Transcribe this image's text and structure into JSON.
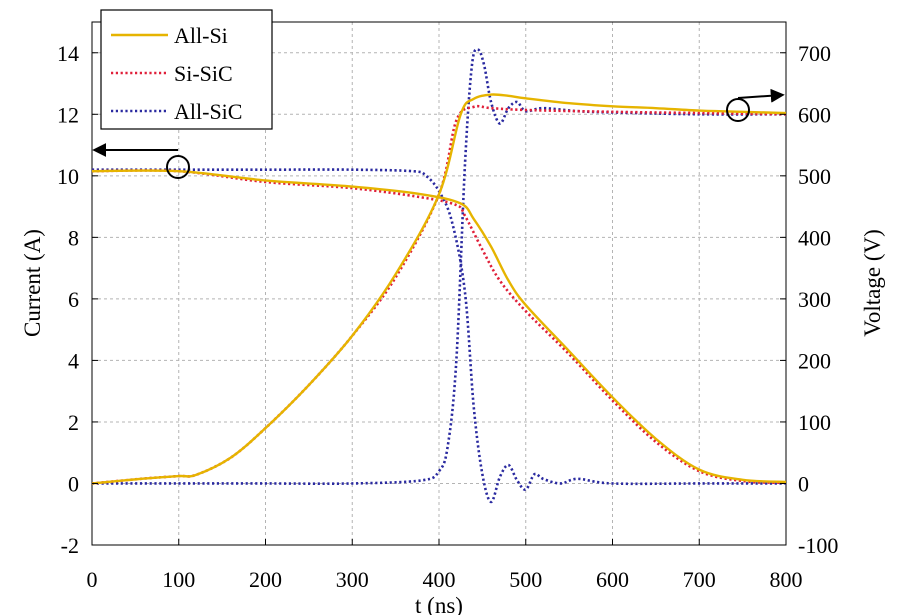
{
  "chart_data": {
    "type": "line",
    "title": "",
    "xlabel": "t (ns)",
    "ylabel_left": "Current (A)",
    "ylabel_right": "Voltage (V)",
    "xlim": [
      0,
      800
    ],
    "ylim_left": [
      -2,
      15
    ],
    "ylim_right": [
      -100,
      750
    ],
    "x_ticks": [
      0,
      100,
      200,
      300,
      400,
      500,
      600,
      700,
      800
    ],
    "y_left_ticks": [
      -2,
      0,
      2,
      4,
      6,
      8,
      10,
      12,
      14
    ],
    "y_right_ticks": [
      -100,
      0,
      100,
      200,
      300,
      400,
      500,
      600,
      700
    ],
    "x_tick_labels": [
      "0",
      "100",
      "200",
      "300",
      "400",
      "500",
      "600",
      "700",
      "800"
    ],
    "y_left_tick_labels": [
      "-2",
      "0",
      "2",
      "4",
      "6",
      "8",
      "10",
      "12",
      "14"
    ],
    "y_right_tick_labels": [
      "-100",
      "0",
      "100",
      "200",
      "300",
      "400",
      "500",
      "600",
      "700"
    ],
    "grid": true,
    "legend_position": "top-left",
    "legend": [
      "All-Si",
      "Si-SiC",
      "All-SiC"
    ],
    "series": [
      {
        "name": "All-Si",
        "quantity": "current",
        "axis": "left",
        "color": "#e6b400",
        "style": "solid",
        "x": [
          0,
          100,
          200,
          300,
          380,
          425,
          440,
          460,
          480,
          500,
          550,
          600,
          650,
          700,
          750,
          800
        ],
        "y": [
          10.15,
          10.15,
          9.85,
          9.65,
          9.4,
          9.1,
          8.6,
          7.7,
          6.6,
          5.8,
          4.3,
          2.8,
          1.45,
          0.45,
          0.12,
          0.05
        ]
      },
      {
        "name": "All-Si",
        "quantity": "voltage",
        "axis": "right",
        "color": "#e6b400",
        "style": "solid",
        "x": [
          0,
          60,
          100,
          120,
          160,
          200,
          250,
          300,
          350,
          400,
          425,
          440,
          460,
          480,
          500,
          550,
          600,
          650,
          700,
          750,
          800
        ],
        "y": [
          0,
          8,
          12,
          14,
          42,
          90,
          160,
          240,
          340,
          470,
          600,
          625,
          632,
          630,
          626,
          618,
          613,
          610,
          606,
          604,
          602
        ]
      },
      {
        "name": "Si-SiC",
        "quantity": "current",
        "axis": "left",
        "color": "#e0203a",
        "style": "dotted",
        "x": [
          0,
          100,
          200,
          300,
          380,
          420,
          430,
          450,
          470,
          500,
          550,
          600,
          650,
          700,
          750,
          800
        ],
        "y": [
          10.15,
          10.15,
          9.8,
          9.6,
          9.3,
          9.05,
          8.7,
          7.6,
          6.6,
          5.6,
          4.2,
          2.7,
          1.35,
          0.4,
          0.08,
          0.02
        ]
      },
      {
        "name": "Si-SiC",
        "quantity": "voltage",
        "axis": "right",
        "color": "#e0203a",
        "style": "dotted",
        "x": [
          0,
          60,
          100,
          120,
          160,
          200,
          250,
          300,
          350,
          400,
          420,
          440,
          460,
          500,
          600,
          700,
          800
        ],
        "y": [
          0,
          8,
          12,
          14,
          42,
          90,
          160,
          240,
          335,
          470,
          590,
          612,
          610,
          607,
          604,
          602,
          600
        ]
      },
      {
        "name": "All-SiC",
        "quantity": "current",
        "axis": "left",
        "color": "#2a2aa0",
        "style": "dotted",
        "x": [
          0,
          100,
          200,
          300,
          370,
          385,
          400,
          415,
          430,
          440,
          450,
          460,
          470,
          480,
          490,
          500,
          510,
          520,
          540,
          560,
          600,
          700,
          800
        ],
        "y": [
          10.2,
          10.2,
          10.2,
          10.2,
          10.15,
          10.0,
          9.5,
          8.5,
          6.2,
          2.5,
          0.3,
          -0.6,
          0.2,
          0.6,
          0.1,
          -0.2,
          0.3,
          0.15,
          0.0,
          0.15,
          0.0,
          0.0,
          0.0
        ]
      },
      {
        "name": "All-SiC",
        "quantity": "voltage",
        "axis": "right",
        "color": "#2a2aa0",
        "style": "dotted",
        "x": [
          0,
          100,
          200,
          300,
          380,
          400,
          410,
          420,
          430,
          438,
          445,
          452,
          460,
          470,
          480,
          490,
          500,
          520,
          560,
          600,
          700,
          800
        ],
        "y": [
          0,
          0,
          0,
          0,
          5,
          20,
          60,
          200,
          520,
          680,
          705,
          680,
          620,
          585,
          610,
          620,
          605,
          610,
          605,
          603,
          600,
          600
        ]
      }
    ]
  }
}
